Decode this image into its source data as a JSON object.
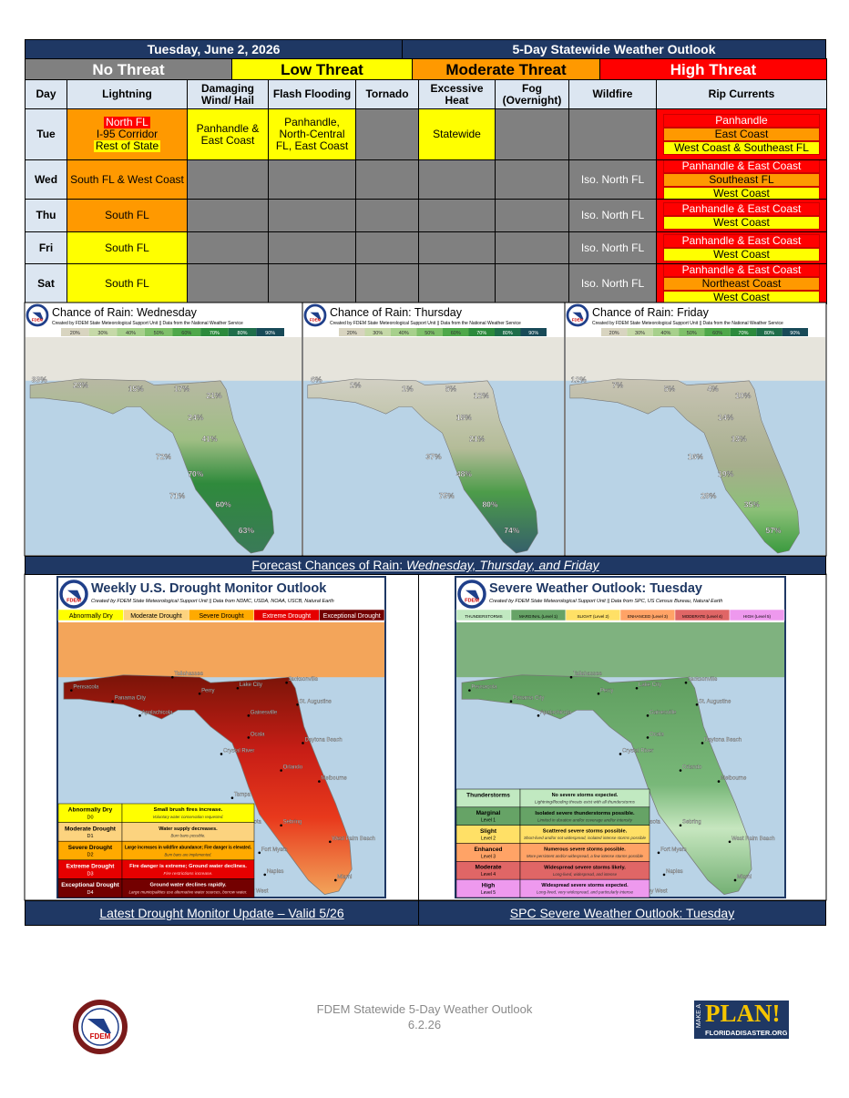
{
  "header": {
    "date": "Tuesday, June 2, 2026",
    "title": "5-Day Statewide Weather Outlook"
  },
  "threat_levels": [
    "No Threat",
    "Low Threat",
    "Moderate Threat",
    "High Threat"
  ],
  "columns": [
    "Day",
    "Lightning",
    "Damaging Wind/ Hail",
    "Flash Flooding",
    "Tornado",
    "Excessive Heat",
    "Fog (Overnight)",
    "Wildfire",
    "Rip Currents"
  ],
  "rows": [
    {
      "day": "Tue",
      "cells": [
        [
          "North FL",
          "I-95 Corridor",
          "Rest of State"
        ],
        [
          "Panhandle & East Coast"
        ],
        [
          "Panhandle, North-Central FL, East Coast"
        ],
        null,
        [
          "Statewide"
        ],
        null,
        null,
        [
          "Panhandle",
          "East Coast",
          "West Coast & Southeast FL"
        ]
      ]
    },
    {
      "day": "Wed",
      "cells": [
        [
          "South FL & West Coast"
        ],
        null,
        null,
        null,
        null,
        null,
        [
          "Iso. North FL"
        ],
        [
          "Panhandle & East Coast",
          "Southeast FL",
          "West Coast"
        ]
      ]
    },
    {
      "day": "Thu",
      "cells": [
        [
          "South FL"
        ],
        null,
        null,
        null,
        null,
        null,
        [
          "Iso. North FL"
        ],
        [
          "Panhandle & East Coast",
          "West Coast"
        ]
      ]
    },
    {
      "day": "Fri",
      "cells": [
        [
          "South FL"
        ],
        null,
        null,
        null,
        null,
        null,
        [
          "Iso. North FL"
        ],
        [
          "Panhandle & East Coast",
          "West Coast"
        ]
      ]
    },
    {
      "day": "Sat",
      "cells": [
        [
          "South FL"
        ],
        null,
        null,
        null,
        null,
        null,
        [
          "Iso. North FL"
        ],
        [
          "Panhandle & East Coast",
          "Northeast Coast",
          "West Coast"
        ]
      ]
    }
  ],
  "rain_credit": "Created by FDEM State Meteorological Support Unit || Data from the National Weather Service",
  "rain_scale": [
    "20%",
    "30%",
    "40%",
    "50%",
    "60%",
    "70%",
    "80%",
    "90%"
  ],
  "rain_maps": [
    {
      "title": "Chance of Rain: Wednesday",
      "labels": [
        "33%",
        "23%",
        "15%",
        "17%",
        "21%",
        "24%",
        "41%",
        "72%",
        "70%",
        "71%",
        "60%",
        "63%"
      ]
    },
    {
      "title": "Chance of Rain: Thursday",
      "labels": [
        "6%",
        "2%",
        "1%",
        "5%",
        "12%",
        "18%",
        "21%",
        "37%",
        "48%",
        "75%",
        "80%",
        "74%"
      ]
    },
    {
      "title": "Chance of Rain: Friday",
      "labels": [
        "12%",
        "7%",
        "5%",
        "4%",
        "10%",
        "14%",
        "13%",
        "16%",
        "19%",
        "28%",
        "35%",
        "57%"
      ]
    }
  ],
  "rain_caption": {
    "text": "Forecast Chances of Rain:",
    "emphasis": "Wednesday, Thursday, and Friday"
  },
  "logo": "FDEM",
  "map_cities": [
    "Pensacola",
    "Tallahassee",
    "Panama City",
    "Apalachicola",
    "Perry",
    "Lake City",
    "Jacksonville",
    "Gainesville",
    "St. Augustine",
    "Ocala",
    "Daytona Beach",
    "Crystal River",
    "Orlando",
    "Tampa",
    "Melbourne",
    "Sarasota",
    "Sebring",
    "Fort Myers",
    "West Palm Beach",
    "Naples",
    "Miami",
    "Key West"
  ],
  "drought": {
    "title": "Weekly U.S. Drought Monitor Outlook",
    "credit": "Created by FDEM State Meteorological Support Unit || Data from NDMC, USDA, NOAA, USCB, Natural Earth",
    "categories": [
      "Abnormally Dry",
      "Moderate Drought",
      "Severe Drought",
      "Extreme Drought",
      "Exceptional Drought"
    ],
    "key": [
      {
        "name": "Abnormally Dry",
        "code": "D0",
        "impact": "Small brush fires increase.",
        "note": "Voluntary water conservation requested."
      },
      {
        "name": "Moderate Drought",
        "code": "D1",
        "impact": "Water supply decreases.",
        "note": "Burn bans possible."
      },
      {
        "name": "Severe Drought",
        "code": "D2",
        "impact": "Large increases in wildfire abundance; Fire danger is elevated.",
        "note": "Burn bans are implemented."
      },
      {
        "name": "Extreme Drought",
        "code": "D3",
        "impact": "Fire danger is extreme; Ground water declines.",
        "note": "Fire restrictions increase."
      },
      {
        "name": "Exceptional Drought",
        "code": "D4",
        "impact": "Ground water declines rapidly.",
        "note": "Large municipalities use alternative water sources, borrow water."
      }
    ],
    "caption": "Latest Drought Monitor Update – Valid 5/26"
  },
  "severe": {
    "title": "Severe Weather Outlook: Tuesday",
    "credit": "Created by FDEM State Meteorological Support Unit || Data from SPC, US Census Bureau, Natural Earth",
    "scale": [
      "THUNDERSTORMS",
      "MARGINAL (Level 1)",
      "SLIGHT (Level 2)",
      "ENHANCED (Level 3)",
      "MODERATE (Level 4)",
      "HIGH (Level 5)"
    ],
    "key": [
      {
        "name": "Thunderstorms",
        "impact": "No severe storms expected.",
        "note": "Lightning/flooding threats exist with all thunderstorms"
      },
      {
        "name": "Marginal",
        "level": "Level 1",
        "impact": "Isolated severe thunderstorms possible.",
        "note": "Limited in duration and/or coverage and/or intensity"
      },
      {
        "name": "Slight",
        "level": "Level 2",
        "impact": "Scattered severe storms possible.",
        "note": "Short-lived and/or not widespread, isolated intense storms possible"
      },
      {
        "name": "Enhanced",
        "level": "Level 3",
        "impact": "Numerous severe storms possible.",
        "note": "More persistent and/or widespread, a few intense storms possible"
      },
      {
        "name": "Moderate",
        "level": "Level 4",
        "impact": "Widespread severe storms likely.",
        "note": "Long-lived, widespread, and intense"
      },
      {
        "name": "High",
        "level": "Level 5",
        "impact": "Widespread severe storms expected.",
        "note": "Long-lived, very widespread, and particularly intense"
      }
    ],
    "caption": "SPC Severe Weather Outlook: Tuesday"
  },
  "footer": {
    "title": "FDEM Statewide 5-Day Weather Outlook",
    "date": "6.2.26",
    "plan_top": "MAKE A",
    "plan": "PLAN!",
    "plan_url": "FLORIDADISASTER.ORG"
  }
}
